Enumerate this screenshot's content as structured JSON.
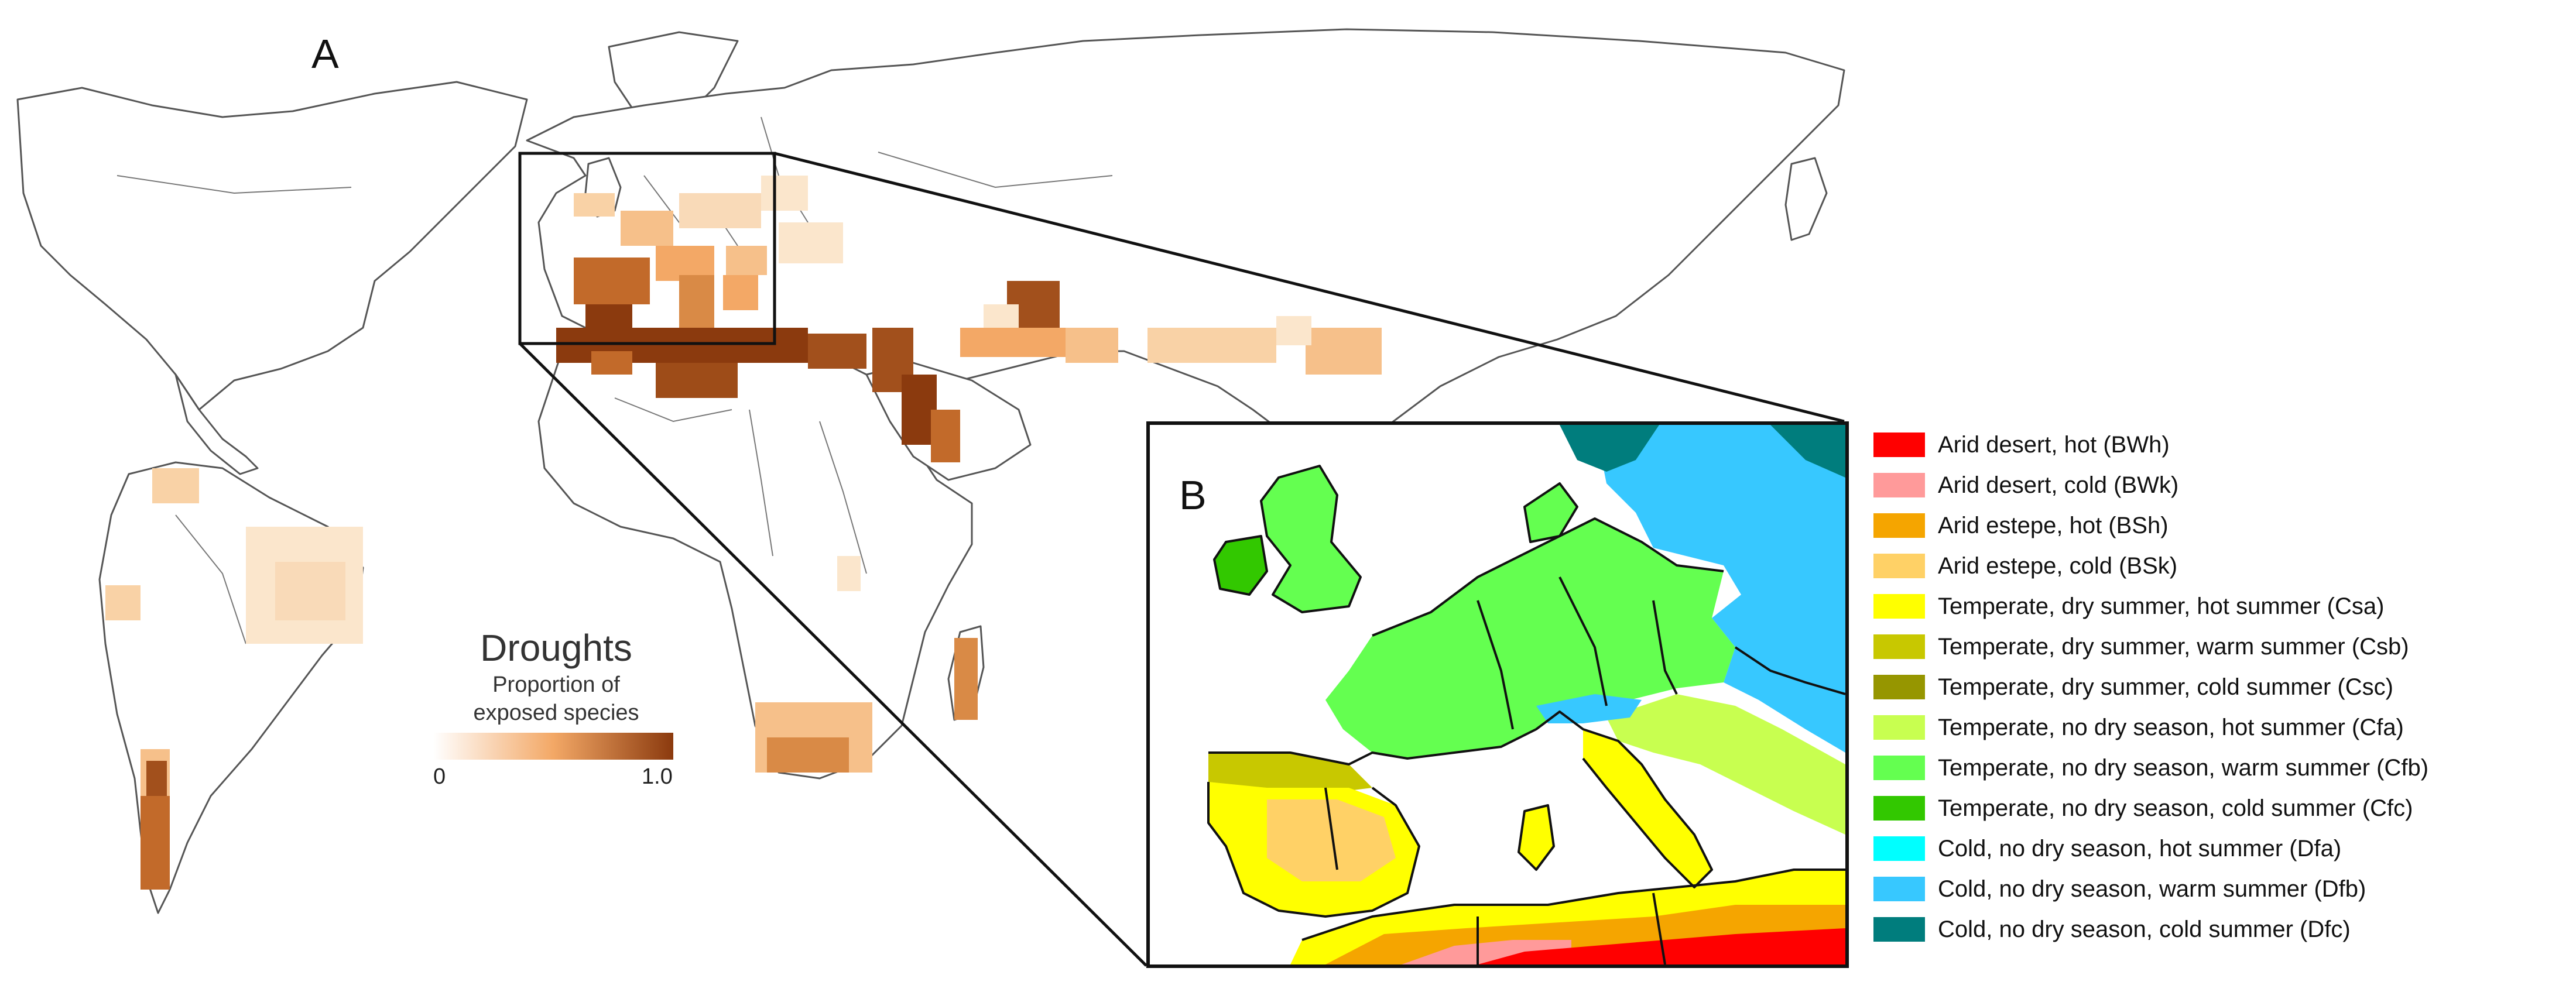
{
  "panel_a": {
    "label": "A",
    "legend": {
      "title": "Droughts",
      "subtitle_line1": "Proportion of",
      "subtitle_line2": "exposed species",
      "min_label": "0",
      "max_label": "1.0",
      "color_min": "#ffffff",
      "color_mid": "#f3a866",
      "color_max": "#8b3a0e"
    }
  },
  "panel_b": {
    "label": "B",
    "legend": [
      {
        "label": "Arid desert, hot (BWh)",
        "color": "#ff0000"
      },
      {
        "label": "Arid desert, cold (BWk)",
        "color": "#ff9a9a"
      },
      {
        "label": "Arid estepe, hot (BSh)",
        "color": "#f5a500"
      },
      {
        "label": "Arid estepe, cold (BSk)",
        "color": "#ffd166"
      },
      {
        "label": "Temperate, dry summer, hot summer (Csa)",
        "color": "#ffff00"
      },
      {
        "label": "Temperate, dry summer, warm summer (Csb)",
        "color": "#c8c800"
      },
      {
        "label": "Temperate, dry summer, cold summer (Csc)",
        "color": "#969600"
      },
      {
        "label": "Temperate, no dry season, hot summer (Cfa)",
        "color": "#c8ff50"
      },
      {
        "label": "Temperate, no dry season, warm summer (Cfb)",
        "color": "#64ff50"
      },
      {
        "label": "Temperate, no dry season, cold summer (Cfc)",
        "color": "#32c800"
      },
      {
        "label": "Cold, no dry season, hot summer (Dfa)",
        "color": "#00ffff"
      },
      {
        "label": "Cold, no dry season, warm summer (Dfb)",
        "color": "#37c8ff"
      },
      {
        "label": "Cold, no dry season, cold summer (Dfc)",
        "color": "#007d7d"
      }
    ]
  }
}
